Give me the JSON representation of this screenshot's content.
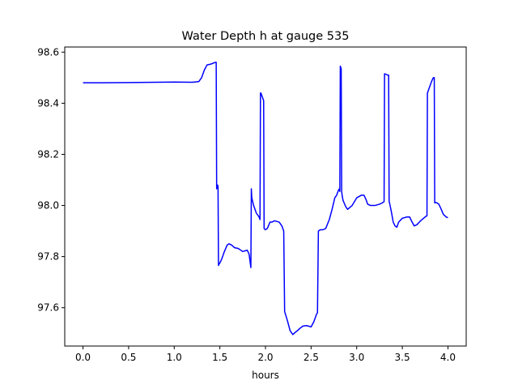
{
  "chart_data": {
    "type": "line",
    "title": "Water Depth h at gauge 535",
    "xlabel": "hours",
    "ylabel": "",
    "xlim": [
      -0.2,
      4.2
    ],
    "ylim": [
      97.45,
      98.62
    ],
    "xticks": [
      {
        "value": 0.0,
        "label": "0.0"
      },
      {
        "value": 0.5,
        "label": "0.5"
      },
      {
        "value": 1.0,
        "label": "1.0"
      },
      {
        "value": 1.5,
        "label": "1.5"
      },
      {
        "value": 2.0,
        "label": "2.0"
      },
      {
        "value": 2.5,
        "label": "2.5"
      },
      {
        "value": 3.0,
        "label": "3.0"
      },
      {
        "value": 3.5,
        "label": "3.5"
      },
      {
        "value": 4.0,
        "label": "4.0"
      }
    ],
    "yticks": [
      {
        "value": 97.6,
        "label": "97.6"
      },
      {
        "value": 97.8,
        "label": "97.8"
      },
      {
        "value": 98.0,
        "label": "98.0"
      },
      {
        "value": 98.2,
        "label": "98.2"
      },
      {
        "value": 98.4,
        "label": "98.4"
      },
      {
        "value": 98.6,
        "label": "98.6"
      }
    ],
    "grid": false,
    "series": [
      {
        "color": "#0000ff",
        "x": [
          0.0,
          0.2,
          0.5,
          0.8,
          1.0,
          1.2,
          1.27,
          1.3,
          1.33,
          1.36,
          1.4,
          1.45,
          1.46,
          1.465,
          1.475,
          1.48,
          1.485,
          1.49,
          1.5,
          1.52,
          1.55,
          1.58,
          1.6,
          1.63,
          1.66,
          1.7,
          1.75,
          1.8,
          1.82,
          1.84,
          1.845,
          1.85,
          1.87,
          1.9,
          1.93,
          1.94,
          1.945,
          1.95,
          1.96,
          1.98,
          1.985,
          1.99,
          2.0,
          2.02,
          2.05,
          2.07,
          2.1,
          2.15,
          2.18,
          2.2,
          2.21,
          2.24,
          2.27,
          2.3,
          2.33,
          2.35,
          2.38,
          2.41,
          2.45,
          2.5,
          2.53,
          2.56,
          2.57,
          2.58,
          2.6,
          2.63,
          2.66,
          2.7,
          2.73,
          2.76,
          2.78,
          2.8,
          2.81,
          2.815,
          2.82,
          2.825,
          2.83,
          2.835,
          2.84,
          2.85,
          2.88,
          2.9,
          2.95,
          3.0,
          3.05,
          3.08,
          3.1,
          3.12,
          3.15,
          3.2,
          3.25,
          3.28,
          3.3,
          3.305,
          3.31,
          3.34,
          3.35,
          3.355,
          3.36,
          3.38,
          3.4,
          3.42,
          3.44,
          3.46,
          3.5,
          3.55,
          3.58,
          3.6,
          3.63,
          3.66,
          3.7,
          3.75,
          3.77,
          3.775,
          3.78,
          3.8,
          3.82,
          3.84,
          3.85,
          3.855,
          3.86,
          3.88,
          3.9,
          3.92,
          3.95,
          3.98,
          4.0
        ],
        "y": [
          98.48,
          98.48,
          98.481,
          98.482,
          98.483,
          98.482,
          98.485,
          98.5,
          98.53,
          98.55,
          98.553,
          98.56,
          98.56,
          98.065,
          98.08,
          98.075,
          97.765,
          97.77,
          97.775,
          97.79,
          97.82,
          97.845,
          97.85,
          97.845,
          97.835,
          97.832,
          97.82,
          97.825,
          97.81,
          97.757,
          98.065,
          98.03,
          98.0,
          97.97,
          97.955,
          97.945,
          98.44,
          98.44,
          98.43,
          98.41,
          97.91,
          97.908,
          97.905,
          97.91,
          97.935,
          97.935,
          97.94,
          97.935,
          97.92,
          97.9,
          97.585,
          97.55,
          97.51,
          97.495,
          97.505,
          97.51,
          97.52,
          97.528,
          97.53,
          97.525,
          97.545,
          97.575,
          97.58,
          97.9,
          97.905,
          97.905,
          97.91,
          97.945,
          97.985,
          98.03,
          98.04,
          98.06,
          98.065,
          98.055,
          98.545,
          98.54,
          98.535,
          98.055,
          98.04,
          98.02,
          97.995,
          97.985,
          98.0,
          98.03,
          98.04,
          98.04,
          98.025,
          98.005,
          98.0,
          98.0,
          98.005,
          98.01,
          98.015,
          98.515,
          98.515,
          98.51,
          98.51,
          98.015,
          98.01,
          97.975,
          97.935,
          97.92,
          97.915,
          97.935,
          97.95,
          97.955,
          97.955,
          97.94,
          97.92,
          97.925,
          97.94,
          97.955,
          97.96,
          98.44,
          98.445,
          98.465,
          98.485,
          98.5,
          98.5,
          98.01,
          98.012,
          98.01,
          98.005,
          97.99,
          97.965,
          97.955,
          97.952
        ]
      }
    ]
  }
}
